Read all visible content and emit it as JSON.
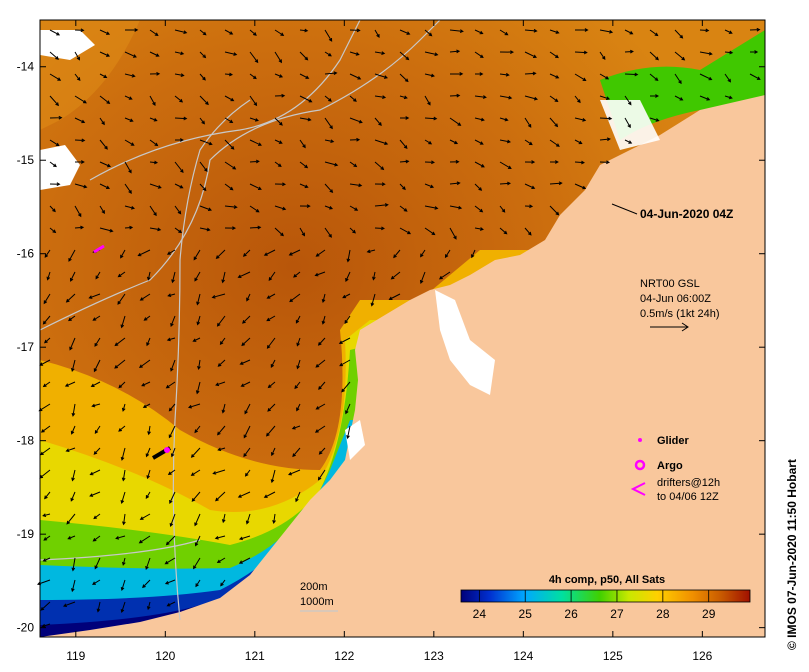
{
  "map": {
    "x_ticks": [
      "119",
      "120",
      "121",
      "122",
      "123",
      "124",
      "125",
      "126"
    ],
    "y_ticks": [
      "-14",
      "-15",
      "-16",
      "-17",
      "-18",
      "-19",
      "-20"
    ],
    "x_range": [
      118.6,
      126.7
    ],
    "y_range": [
      -20.1,
      -13.5
    ]
  },
  "timestamp": "04-Jun-2020 04Z",
  "current_info": {
    "line1": "NRT00 GSL",
    "line2": "04-Jun 06:00Z",
    "line3": "0.5m/s (1kt 24h)"
  },
  "legend": {
    "glider": "Glider",
    "argo": "Argo",
    "drifters_line1": "drifters@12h",
    "drifters_line2": "to 04/06 12Z"
  },
  "contours": {
    "c200": "200m",
    "c1000": "1000m"
  },
  "colorbar": {
    "title": "4h comp, p50, All Sats",
    "ticks": [
      "24",
      "25",
      "26",
      "27",
      "28",
      "29"
    ],
    "min": 23.6,
    "max": 29.9
  },
  "credit": "© IMOS 07-Jun-2020 11:50 Hobart",
  "colors": {
    "land": "#f9c79c",
    "warm": "#c86a0c",
    "glider": "#ff00ff"
  }
}
